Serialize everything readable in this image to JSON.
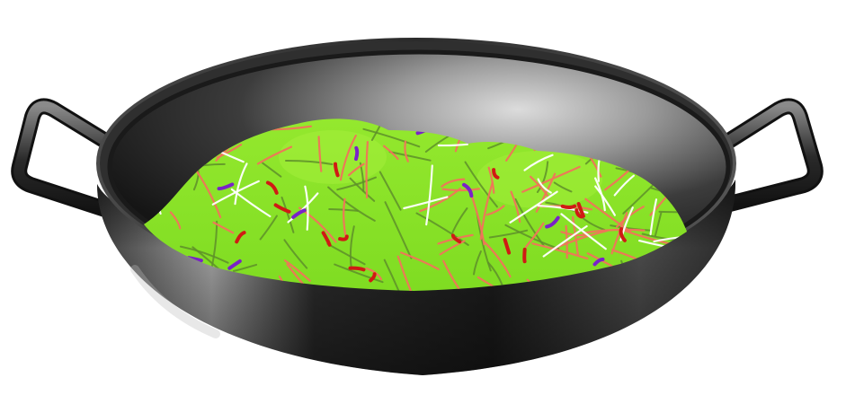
{
  "scene": {
    "subject": "wok",
    "colors": {
      "background": "#ffffff",
      "wok_dark": "#1f1f1f",
      "wok_mid": "#3a3a3a",
      "wok_highlight": "#d9d9d9",
      "food_green": "#8be32a",
      "food_green_light": "#a6f03c",
      "strand_dark_green": "#5e8f2a",
      "strand_orange": "#f0745a",
      "strand_red": "#d01a14",
      "strand_white": "#ffffff",
      "strand_purple": "#7a22c8"
    },
    "icons": [
      "wok-icon",
      "left-handle-icon",
      "right-handle-icon",
      "stir-fry-icon"
    ]
  }
}
